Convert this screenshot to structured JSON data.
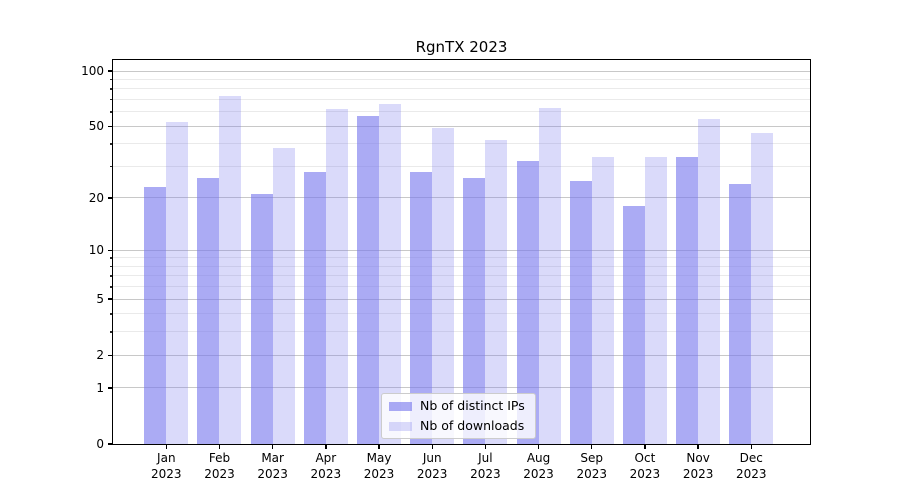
{
  "title": "RgnTX 2023",
  "chart_data": {
    "type": "bar",
    "title": "RgnTX 2023",
    "categories": [
      "Jan 2023",
      "Feb 2023",
      "Mar 2023",
      "Apr 2023",
      "May 2023",
      "Jun 2023",
      "Jul 2023",
      "Aug 2023",
      "Sep 2023",
      "Oct 2023",
      "Nov 2023",
      "Dec 2023"
    ],
    "x_tick_months": [
      "Jan",
      "Feb",
      "Mar",
      "Apr",
      "May",
      "Jun",
      "Jul",
      "Aug",
      "Sep",
      "Oct",
      "Nov",
      "Dec"
    ],
    "x_tick_year": "2023",
    "series": [
      {
        "name": "Nb of distinct IPs",
        "color": "rgba(120,120,238,0.62)",
        "values": [
          23,
          26,
          21,
          28,
          57,
          28,
          26,
          32,
          25,
          18,
          34,
          24
        ]
      },
      {
        "name": "Nb of downloads",
        "color": "rgba(120,120,238,0.27)",
        "values": [
          53,
          73,
          38,
          62,
          66,
          49,
          42,
          63,
          34,
          34,
          55,
          46
        ]
      }
    ],
    "y_scale": "log1p",
    "ylim": [
      0,
      115
    ],
    "y_ticks_major": [
      0,
      1,
      2,
      5,
      10,
      20,
      50,
      100
    ],
    "y_ticks_minor": [
      3,
      4,
      6,
      7,
      8,
      9,
      30,
      40,
      60,
      70,
      80,
      90
    ],
    "grid": true,
    "legend_position": "lower center",
    "colors": {
      "grid_major": "#c8c8c8",
      "grid_minor": "#eaeaea",
      "axis": "#000000",
      "text": "#000000",
      "legend_border": "#cccccc",
      "legend_bg": "rgba(255,255,255,0.8)",
      "background": "#ffffff"
    }
  }
}
